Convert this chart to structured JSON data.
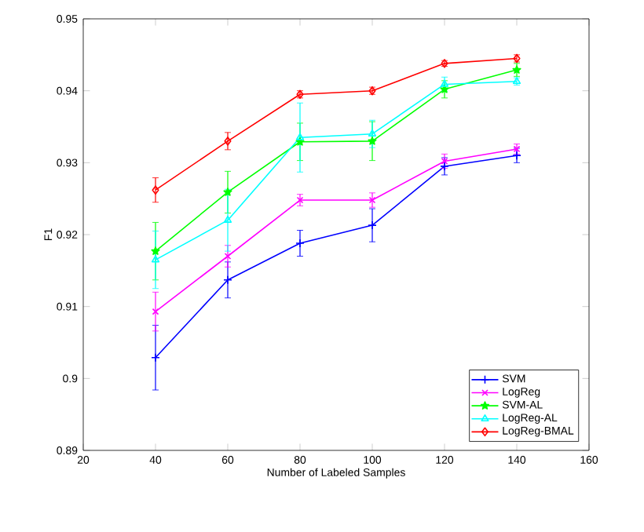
{
  "chart_data": {
    "type": "line",
    "xlabel": "Number of Labeled Samples",
    "ylabel": "F1",
    "x": [
      40,
      60,
      80,
      100,
      120,
      140
    ],
    "series": [
      {
        "name": "SVM",
        "color": "#0000ff",
        "marker": "cross",
        "values": [
          0.9029,
          0.9137,
          0.9188,
          0.9213,
          0.9295,
          0.931
        ],
        "errors": [
          0.0045,
          0.0025,
          0.0018,
          0.0023,
          0.0012,
          0.001
        ]
      },
      {
        "name": "LogReg",
        "color": "#ff00ff",
        "marker": "x",
        "values": [
          0.9093,
          0.917,
          0.9248,
          0.9248,
          0.9302,
          0.9319
        ],
        "errors": [
          0.0027,
          0.0015,
          0.0008,
          0.001,
          0.001,
          0.0007
        ]
      },
      {
        "name": "SVM-AL",
        "color": "#00ff00",
        "marker": "star",
        "values": [
          0.9177,
          0.9259,
          0.9329,
          0.933,
          0.9402,
          0.9429
        ],
        "errors": [
          0.004,
          0.0029,
          0.0026,
          0.0027,
          0.0012,
          0.0009
        ]
      },
      {
        "name": "LogReg-AL",
        "color": "#00ffff",
        "marker": "triangle",
        "values": [
          0.9165,
          0.922,
          0.9335,
          0.934,
          0.9409,
          0.9413
        ],
        "errors": [
          0.004,
          0.0043,
          0.0048,
          0.0019,
          0.001,
          0.0005
        ]
      },
      {
        "name": "LogReg-BMAL",
        "color": "#ff0000",
        "marker": "diamond",
        "values": [
          0.9262,
          0.933,
          0.9395,
          0.94,
          0.9438,
          0.9445
        ],
        "errors": [
          0.0017,
          0.0012,
          0.0005,
          0.0005,
          0.0004,
          0.0005
        ]
      }
    ],
    "xlim": [
      20,
      160
    ],
    "xticks": [
      20,
      40,
      60,
      80,
      100,
      120,
      140,
      160
    ],
    "ylim": [
      0.89,
      0.95
    ],
    "yticks": [
      0.89,
      0.9,
      0.91,
      0.92,
      0.93,
      0.94,
      0.95
    ],
    "grid": false,
    "legend": "bottom right",
    "line_style": "solid"
  }
}
